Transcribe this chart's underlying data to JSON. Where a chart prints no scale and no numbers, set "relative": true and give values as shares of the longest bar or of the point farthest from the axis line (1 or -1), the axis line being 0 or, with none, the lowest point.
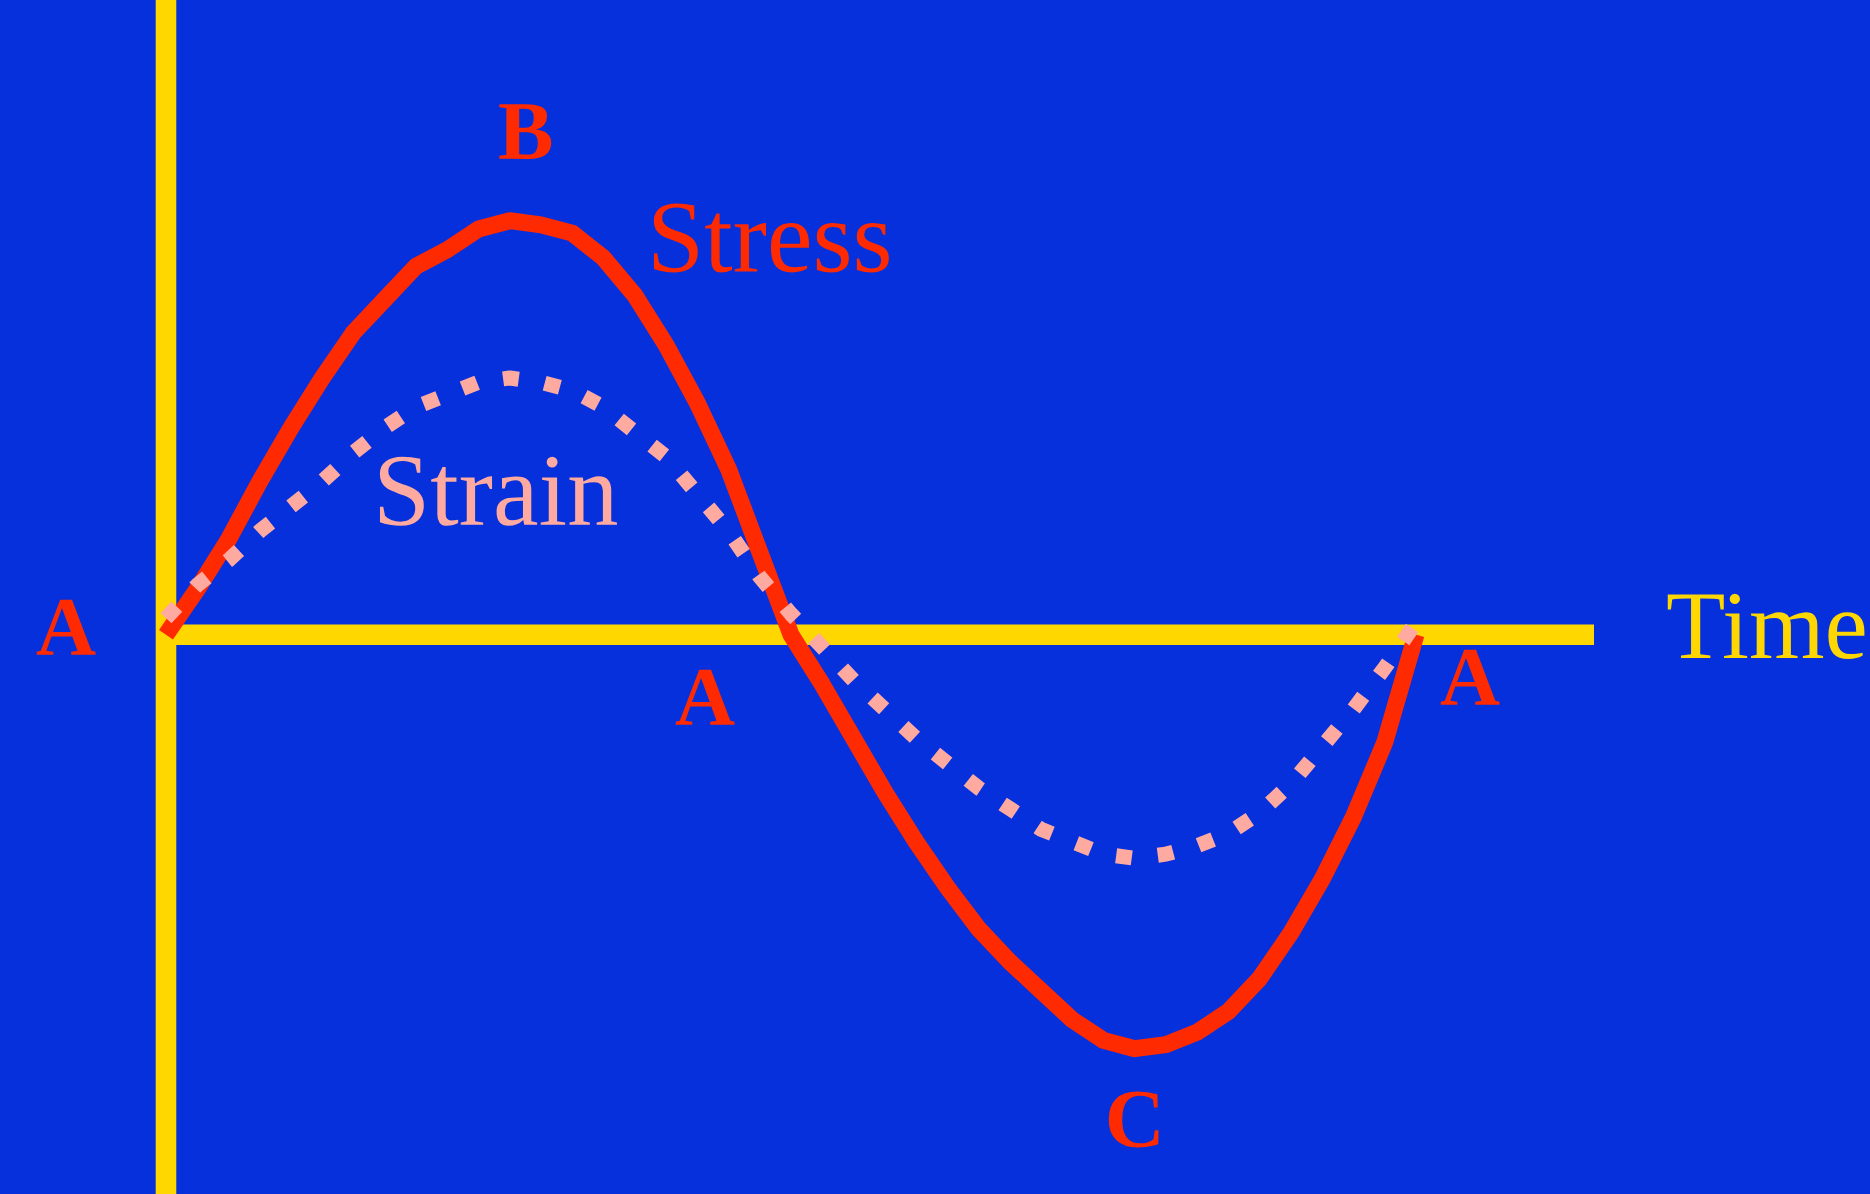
{
  "chart_data": {
    "type": "line",
    "relative": true,
    "xlabel": "Time",
    "annotations": [
      "A",
      "B",
      "A",
      "C",
      "A"
    ],
    "categories": [
      null,
      null,
      null,
      null,
      null,
      null,
      null,
      null,
      null,
      null,
      null,
      null,
      null,
      null,
      null,
      null,
      null,
      null,
      null,
      null,
      null,
      null,
      null,
      null,
      null,
      null,
      null,
      null,
      null,
      null,
      null,
      null,
      null,
      null,
      null,
      null,
      null,
      null,
      null,
      null,
      null
    ],
    "ref_lines": [
      {
        "axis": "y",
        "value": 0,
        "color": "#ffd700"
      }
    ],
    "series": [
      {
        "name": "Stress",
        "color": "#ff2a00",
        "line_style": "solid",
        "values": [
          0,
          0.11,
          0.23,
          0.37,
          0.5,
          0.62,
          0.73,
          0.81,
          0.89,
          0.93,
          0.98,
          1,
          0.99,
          0.97,
          0.91,
          0.82,
          0.7,
          0.56,
          0.4,
          0.2,
          0,
          -0.12,
          -0.25,
          -0.38,
          -0.5,
          -0.61,
          -0.71,
          -0.79,
          -0.86,
          -0.93,
          -0.98,
          -1,
          -0.99,
          -0.96,
          -0.91,
          -0.83,
          -0.72,
          -0.59,
          -0.44,
          -0.26,
          0
        ]
      },
      {
        "name": "Strain",
        "color": "#ffaaa0",
        "line_style": "dotted",
        "values": [
          0.04,
          0.12,
          0.18,
          0.25,
          0.31,
          0.37,
          0.44,
          0.5,
          0.55,
          0.58,
          0.61,
          0.62,
          0.61,
          0.59,
          0.55,
          0.49,
          0.43,
          0.34,
          0.25,
          0.14,
          0.05,
          -0.03,
          -0.11,
          -0.18,
          -0.25,
          -0.31,
          -0.37,
          -0.42,
          -0.47,
          -0.5,
          -0.53,
          -0.54,
          -0.53,
          -0.51,
          -0.48,
          -0.43,
          -0.36,
          -0.27,
          -0.18,
          -0.08,
          0.03
        ]
      }
    ]
  }
}
